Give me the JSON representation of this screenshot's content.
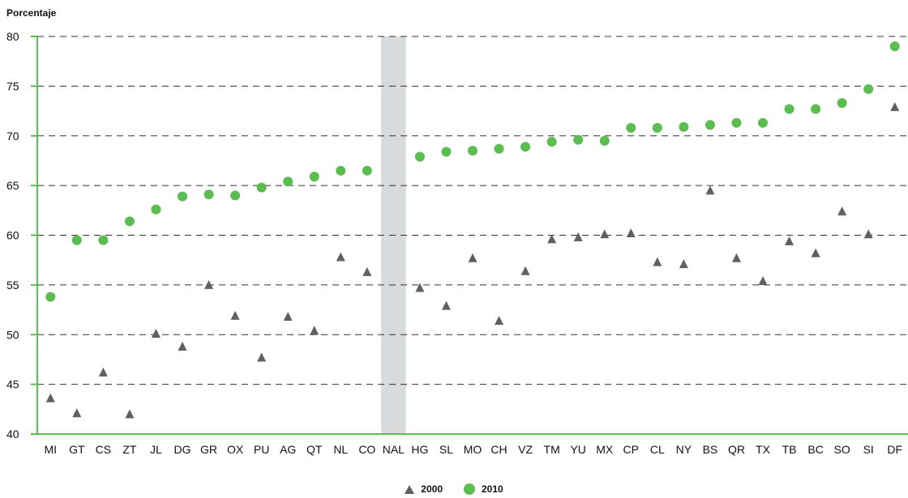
{
  "chart_data": {
    "type": "scatter",
    "ylabel": "Porcentaje",
    "ylim": [
      40,
      80
    ],
    "yticks": [
      40,
      45,
      50,
      55,
      60,
      65,
      70,
      75,
      80
    ],
    "grid": "dashed horizontal",
    "legend_position": "bottom-center",
    "categories": [
      "MI",
      "GT",
      "CS",
      "ZT",
      "JL",
      "DG",
      "GR",
      "OX",
      "PU",
      "AG",
      "QT",
      "NL",
      "CO",
      "NAL",
      "HG",
      "SL",
      "MO",
      "CH",
      "VZ",
      "TM",
      "YU",
      "MX",
      "CP",
      "CL",
      "NY",
      "BS",
      "QR",
      "TX",
      "TB",
      "BC",
      "SO",
      "SI",
      "DF"
    ],
    "highlight_category": "NAL",
    "series": [
      {
        "name": "2000",
        "marker": "triangle",
        "color": "#606060",
        "values": [
          43.6,
          42.1,
          46.2,
          42.0,
          50.1,
          48.8,
          55.0,
          51.9,
          47.7,
          51.8,
          50.4,
          57.8,
          56.3,
          null,
          54.7,
          52.9,
          57.7,
          51.4,
          56.4,
          59.6,
          59.8,
          60.1,
          60.2,
          57.3,
          57.1,
          64.5,
          57.7,
          55.4,
          59.4,
          58.2,
          62.4,
          60.1,
          72.9
        ]
      },
      {
        "name": "2010",
        "marker": "circle",
        "color": "#5bbd4f",
        "values": [
          53.8,
          59.5,
          59.5,
          61.4,
          62.6,
          63.9,
          64.1,
          64.0,
          64.8,
          65.4,
          65.9,
          66.5,
          66.5,
          null,
          67.9,
          68.4,
          68.5,
          68.7,
          68.9,
          69.4,
          69.6,
          69.5,
          70.8,
          70.8,
          70.9,
          71.1,
          71.3,
          71.3,
          72.7,
          72.7,
          73.3,
          74.7,
          79.0
        ]
      }
    ]
  },
  "colors": {
    "axis": "#5bbd4f",
    "grid": "#333333",
    "highlight": "#d9dadb"
  }
}
